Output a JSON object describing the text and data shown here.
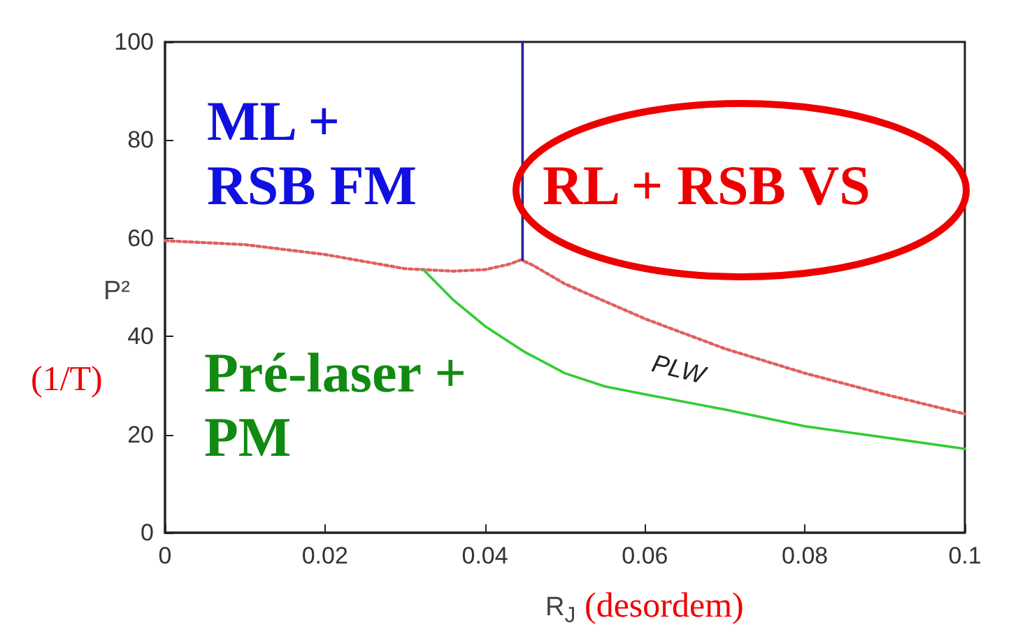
{
  "chart_data": {
    "type": "line",
    "xlabel": "R$_{J}$",
    "ylabel": "P²",
    "annotations": [
      "ML + RSB FM",
      "RL + RSB VS",
      "Pré-laser + PM",
      "(1/T)",
      "(desordem)",
      "PLW"
    ],
    "series": [
      {
        "color": "#e06060",
        "line_style": "dotted",
        "x": [
          0,
          0.01,
          0.02,
          0.03,
          0.036,
          0.04,
          0.043,
          0.0445,
          0.046,
          0.05,
          0.06,
          0.07,
          0.08,
          0.09,
          0.1
        ],
        "values": [
          59.5,
          58.7,
          56.7,
          53.8,
          53.3,
          53.6,
          54.7,
          55.6,
          54.5,
          50.7,
          43.6,
          37.5,
          32.5,
          28.2,
          24.2
        ]
      },
      {
        "color": "#22229a",
        "line_style": "solid",
        "x": [
          0.0447,
          0.0447
        ],
        "values": [
          55.6,
          100
        ]
      },
      {
        "color": "#33cc33",
        "line_style": "solid",
        "x": [
          0.0323,
          0.036,
          0.04,
          0.045,
          0.05,
          0.055,
          0.06,
          0.07,
          0.08,
          0.09,
          0.1
        ],
        "values": [
          53.6,
          47.5,
          42.1,
          36.8,
          32.5,
          29.8,
          28.2,
          25.1,
          21.7,
          19.4,
          17.1
        ]
      }
    ],
    "xlim": [
      0,
      0.1
    ],
    "xticks": [
      0,
      0.02,
      0.04,
      0.06,
      0.08,
      0.1
    ],
    "ylim": [
      0,
      100
    ],
    "yticks": [
      0,
      20,
      40,
      60,
      80,
      100
    ],
    "marker": "none"
  }
}
